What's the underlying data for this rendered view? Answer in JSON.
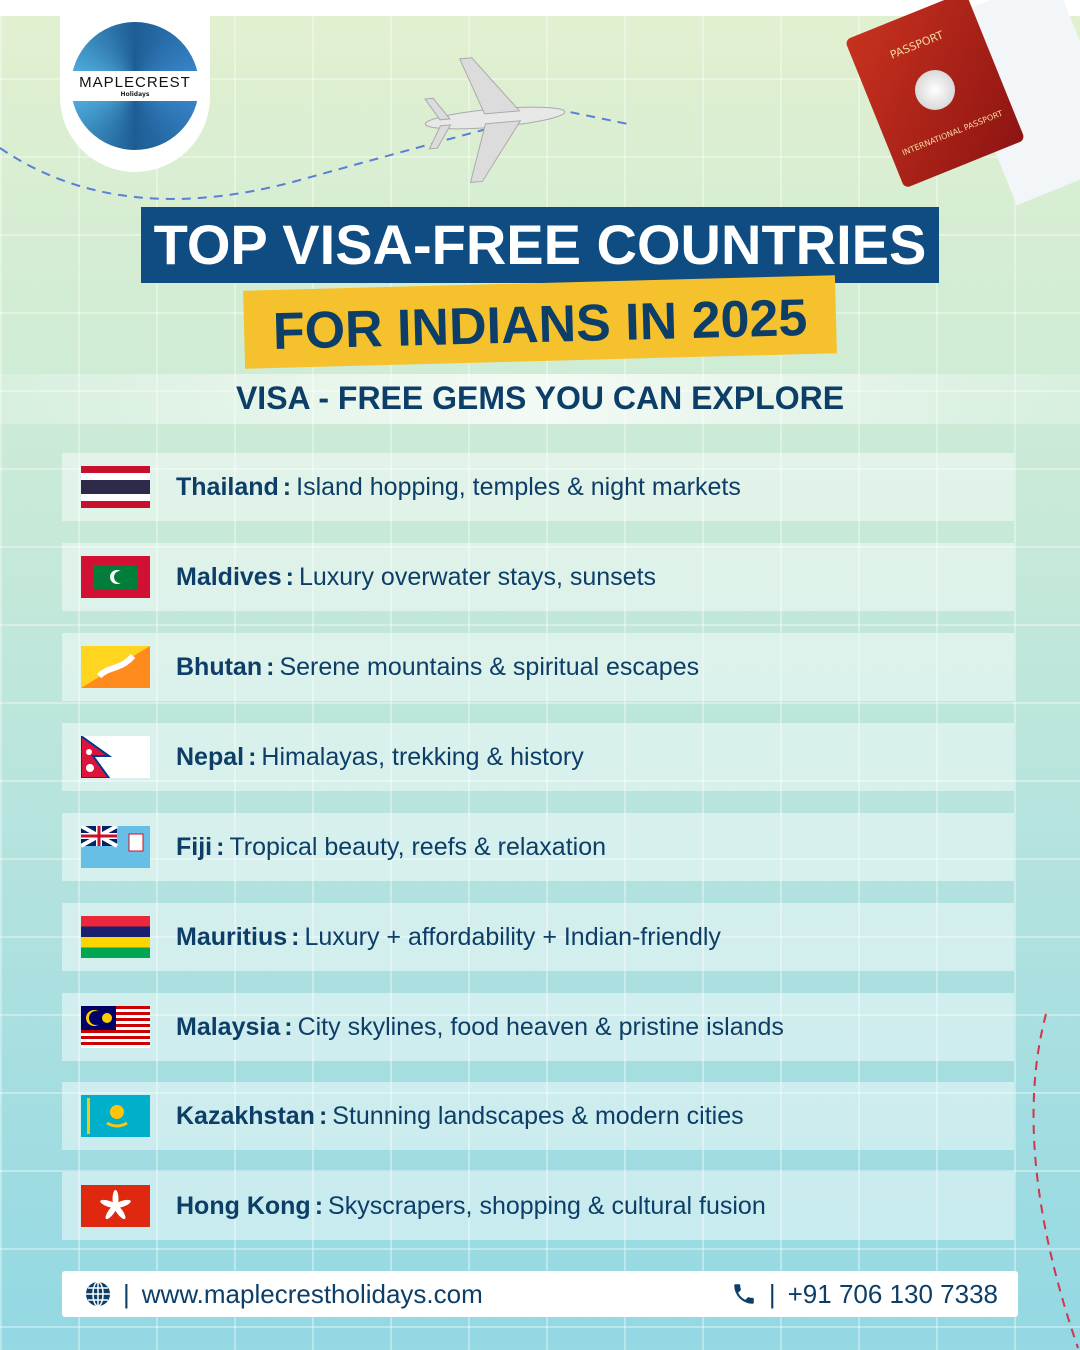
{
  "brand": {
    "name": "MAPLECREST",
    "tagline": "Holidays"
  },
  "passport": {
    "label": "PASSPORT",
    "sub": "INTERNATIONAL PASSPORT"
  },
  "title": {
    "line1": "TOP VISA-FREE COUNTRIES",
    "line2": "FOR INDIANS IN 2025"
  },
  "subtitle": "VISA - FREE GEMS YOU CAN EXPLORE",
  "countries": [
    {
      "name": "Thailand",
      "desc": "Island hopping, temples & night markets",
      "flag": "thailand-flag"
    },
    {
      "name": "Maldives",
      "desc": "Luxury overwater stays, sunsets",
      "flag": "maldives-flag"
    },
    {
      "name": "Bhutan",
      "desc": "Serene mountains & spiritual escapes",
      "flag": "bhutan-flag"
    },
    {
      "name": "Nepal",
      "desc": "Himalayas, trekking & history",
      "flag": "nepal-flag"
    },
    {
      "name": "Fiji",
      "desc": "Tropical beauty, reefs & relaxation",
      "flag": "fiji-flag"
    },
    {
      "name": "Mauritius",
      "desc": "Luxury + affordability + Indian-friendly",
      "flag": "mauritius-flag"
    },
    {
      "name": "Malaysia",
      "desc": "City skylines, food heaven & pristine islands",
      "flag": "malaysia-flag"
    },
    {
      "name": "Kazakhstan",
      "desc": "Stunning landscapes & modern cities",
      "flag": "kazakhstan-flag"
    },
    {
      "name": "Hong Kong",
      "desc": "Skyscrapers, shopping & cultural fusion",
      "flag": "hong-kong-flag"
    }
  ],
  "separator": ":",
  "footer": {
    "website": "www.maplecrestholidays.com",
    "phone": "+91 706 130 7338",
    "divider": "|"
  },
  "colors": {
    "navy": "#0f4c81",
    "yellow": "#f5c22e",
    "text": "#0d3e68"
  }
}
